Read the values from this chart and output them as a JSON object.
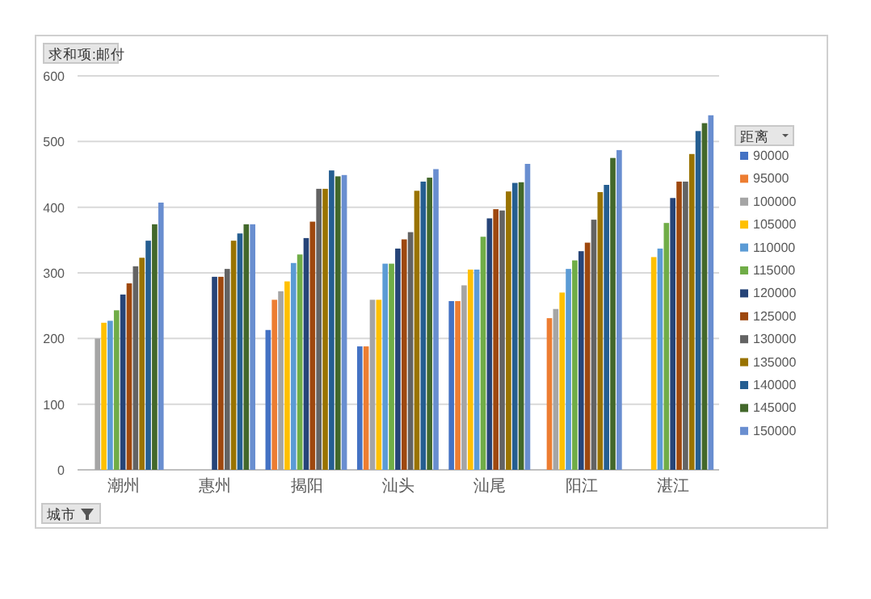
{
  "chart_data": {
    "type": "bar",
    "ylabel": "求和项:邮付",
    "xlabel": "城市",
    "legend_title": "距离",
    "legend": "right",
    "grid": "y",
    "ylim": [
      0,
      600
    ],
    "yticks": [
      0,
      100,
      200,
      300,
      400,
      500,
      600
    ],
    "categories": [
      "潮州",
      "惠州",
      "揭阳",
      "汕头",
      "汕尾",
      "阳江",
      "湛江"
    ],
    "series": [
      {
        "name": "90000",
        "color": "#4472c4",
        "values": [
          null,
          null,
          213,
          188,
          257,
          null,
          null
        ]
      },
      {
        "name": "95000",
        "color": "#ed7d31",
        "values": [
          null,
          null,
          259,
          188,
          257,
          231,
          null
        ]
      },
      {
        "name": "100000",
        "color": "#a5a5a5",
        "values": [
          200,
          null,
          272,
          259,
          281,
          245,
          null
        ]
      },
      {
        "name": "105000",
        "color": "#ffc000",
        "values": [
          224,
          null,
          287,
          259,
          305,
          270,
          324
        ]
      },
      {
        "name": "110000",
        "color": "#5b9bd5",
        "values": [
          227,
          null,
          315,
          314,
          305,
          306,
          337
        ]
      },
      {
        "name": "115000",
        "color": "#70ad47",
        "values": [
          243,
          null,
          328,
          314,
          355,
          319,
          376
        ]
      },
      {
        "name": "120000",
        "color": "#264478",
        "values": [
          267,
          294,
          353,
          337,
          383,
          333,
          414
        ]
      },
      {
        "name": "125000",
        "color": "#9e480e",
        "values": [
          284,
          294,
          378,
          351,
          397,
          346,
          439
        ]
      },
      {
        "name": "130000",
        "color": "#636363",
        "values": [
          310,
          306,
          428,
          362,
          395,
          381,
          439
        ]
      },
      {
        "name": "135000",
        "color": "#997300",
        "values": [
          323,
          349,
          428,
          425,
          424,
          423,
          481
        ]
      },
      {
        "name": "140000",
        "color": "#255e91",
        "values": [
          349,
          360,
          456,
          439,
          437,
          434,
          516
        ]
      },
      {
        "name": "145000",
        "color": "#43682b",
        "values": [
          374,
          374,
          447,
          445,
          438,
          475,
          528
        ]
      },
      {
        "name": "150000",
        "color": "#698ed0",
        "values": [
          407,
          374,
          449,
          458,
          466,
          487,
          540
        ]
      }
    ]
  }
}
